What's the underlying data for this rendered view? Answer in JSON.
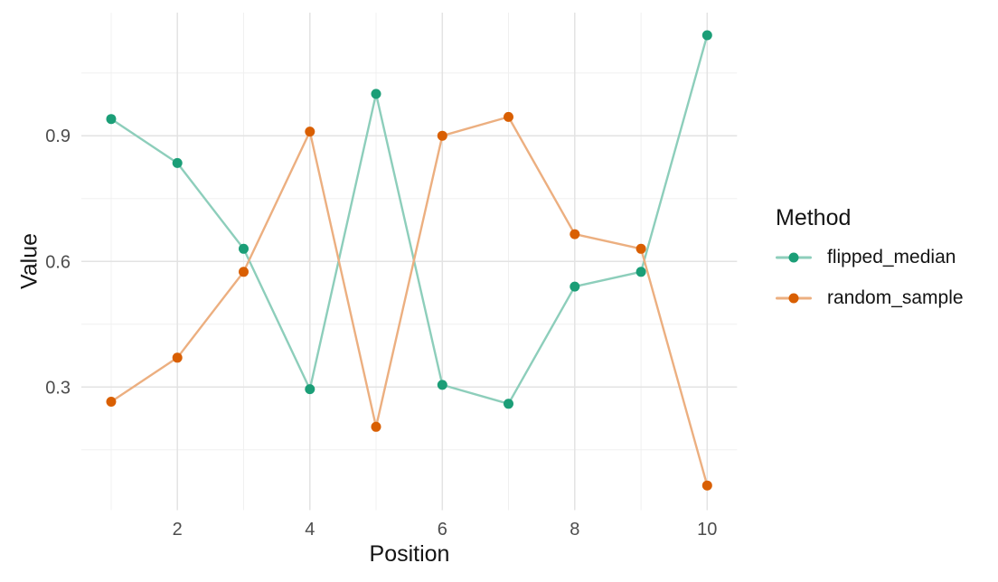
{
  "chart_data": {
    "type": "line",
    "title": "",
    "xlabel": "Position",
    "ylabel": "Value",
    "legend_title": "Method",
    "legend_position": "right",
    "grid": true,
    "background": "#FFFFFF",
    "x": [
      1,
      2,
      3,
      4,
      5,
      6,
      7,
      8,
      9,
      10
    ],
    "series": [
      {
        "name": "flipped_median",
        "point_color": "#1B9E77",
        "line_color": "#8DCEBB",
        "values": [
          0.94,
          0.835,
          0.63,
          0.295,
          1.0,
          0.305,
          0.26,
          0.54,
          0.575,
          1.14
        ]
      },
      {
        "name": "random_sample",
        "point_color": "#D95F02",
        "line_color": "#ECAF80",
        "values": [
          0.265,
          0.37,
          0.575,
          0.91,
          0.205,
          0.9,
          0.945,
          0.665,
          0.63,
          0.065
        ]
      }
    ],
    "xticks": [
      2,
      4,
      6,
      8,
      10
    ],
    "xtick_labels": [
      "2",
      "4",
      "6",
      "8",
      "10"
    ],
    "yticks": [
      0.3,
      0.6,
      0.9
    ],
    "ytick_labels": [
      "0.3",
      "0.6",
      "0.9"
    ],
    "x_minor_ticks": [
      1,
      3,
      5,
      7,
      9
    ],
    "y_minor_ticks": [
      0.15,
      0.45,
      0.75,
      1.05
    ],
    "xlim": [
      0.55,
      10.45
    ],
    "ylim": [
      0.006,
      1.194
    ]
  },
  "styles": {
    "grid_major_color": "#E3E3E3",
    "grid_minor_color": "#F0F0F0",
    "tick_label_color": "#4D4D4D",
    "title_color": "#141414"
  }
}
